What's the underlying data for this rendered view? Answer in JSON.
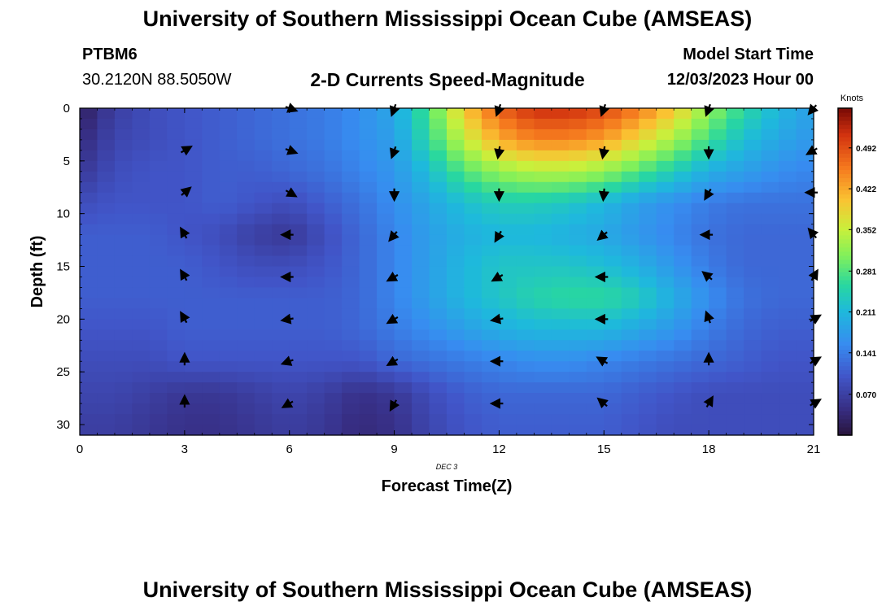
{
  "title": "University of Southern Mississippi Ocean Cube (AMSEAS)",
  "footer_title": "University of Southern Mississippi Ocean Cube (AMSEAS)",
  "station": {
    "id": "PTBM6",
    "coords": "30.2120N  88.5050W"
  },
  "plot_title": "2-D Currents Speed-Magnitude",
  "model_start": {
    "label": "Model Start Time",
    "value": "12/03/2023 Hour 00"
  },
  "chart_data": {
    "type": "heatmap",
    "title": "2-D Currents Speed-Magnitude",
    "xlabel": "Forecast Time(Z)",
    "ylabel": "Depth (ft)",
    "date_label": "DEC 3",
    "xlim": [
      0,
      21
    ],
    "ylim": [
      0,
      31
    ],
    "x_ticks": [
      0,
      3,
      6,
      9,
      12,
      15,
      18,
      21
    ],
    "y_ticks": [
      0,
      5,
      10,
      15,
      20,
      25,
      30
    ],
    "colorbar": {
      "label": "Knots",
      "range": [
        0,
        0.56
      ],
      "ticks": [
        "0.070",
        "0.141",
        "0.211",
        "0.281",
        "0.352",
        "0.422",
        "0.492"
      ],
      "tick_values": [
        0.07,
        0.141,
        0.211,
        0.281,
        0.352,
        0.422,
        0.492
      ]
    },
    "grid_x": [
      0,
      1,
      2,
      3,
      4,
      5,
      6,
      7,
      8,
      9,
      10,
      11,
      12,
      13,
      14,
      15,
      16,
      17,
      18,
      19,
      20,
      21
    ],
    "grid_y": [
      0,
      3,
      6,
      9,
      12,
      15,
      18,
      21,
      24,
      27,
      30
    ],
    "speed_knots": [
      [
        0.02,
        0.07,
        0.09,
        0.1,
        0.11,
        0.12,
        0.13,
        0.14,
        0.16,
        0.19,
        0.28,
        0.4,
        0.48,
        0.52,
        0.52,
        0.5,
        0.46,
        0.4,
        0.32,
        0.26,
        0.21,
        0.18
      ],
      [
        0.04,
        0.08,
        0.09,
        0.1,
        0.11,
        0.12,
        0.13,
        0.14,
        0.16,
        0.18,
        0.26,
        0.35,
        0.42,
        0.45,
        0.45,
        0.43,
        0.38,
        0.33,
        0.27,
        0.22,
        0.19,
        0.17
      ],
      [
        0.06,
        0.09,
        0.1,
        0.1,
        0.11,
        0.11,
        0.12,
        0.13,
        0.15,
        0.17,
        0.22,
        0.28,
        0.32,
        0.34,
        0.34,
        0.32,
        0.28,
        0.24,
        0.2,
        0.18,
        0.16,
        0.15
      ],
      [
        0.09,
        0.1,
        0.1,
        0.1,
        0.11,
        0.1,
        0.09,
        0.11,
        0.13,
        0.16,
        0.19,
        0.22,
        0.24,
        0.24,
        0.23,
        0.21,
        0.18,
        0.16,
        0.14,
        0.13,
        0.13,
        0.13
      ],
      [
        0.11,
        0.11,
        0.11,
        0.1,
        0.09,
        0.07,
        0.06,
        0.09,
        0.12,
        0.15,
        0.18,
        0.2,
        0.21,
        0.21,
        0.2,
        0.19,
        0.17,
        0.15,
        0.13,
        0.12,
        0.12,
        0.12
      ],
      [
        0.11,
        0.11,
        0.11,
        0.11,
        0.1,
        0.09,
        0.09,
        0.1,
        0.12,
        0.15,
        0.18,
        0.21,
        0.23,
        0.23,
        0.23,
        0.22,
        0.2,
        0.17,
        0.14,
        0.12,
        0.12,
        0.12
      ],
      [
        0.11,
        0.11,
        0.11,
        0.11,
        0.11,
        0.11,
        0.11,
        0.11,
        0.12,
        0.15,
        0.18,
        0.21,
        0.23,
        0.25,
        0.26,
        0.26,
        0.24,
        0.2,
        0.16,
        0.13,
        0.12,
        0.12
      ],
      [
        0.1,
        0.1,
        0.1,
        0.11,
        0.11,
        0.11,
        0.11,
        0.11,
        0.12,
        0.14,
        0.16,
        0.18,
        0.2,
        0.21,
        0.21,
        0.21,
        0.19,
        0.17,
        0.14,
        0.12,
        0.11,
        0.11
      ],
      [
        0.09,
        0.09,
        0.09,
        0.1,
        0.1,
        0.1,
        0.1,
        0.1,
        0.1,
        0.12,
        0.13,
        0.14,
        0.15,
        0.16,
        0.16,
        0.15,
        0.14,
        0.13,
        0.12,
        0.11,
        0.1,
        0.1
      ],
      [
        0.08,
        0.08,
        0.07,
        0.06,
        0.06,
        0.07,
        0.08,
        0.07,
        0.05,
        0.06,
        0.09,
        0.11,
        0.12,
        0.12,
        0.12,
        0.12,
        0.11,
        0.1,
        0.09,
        0.09,
        0.09,
        0.09
      ],
      [
        0.07,
        0.07,
        0.06,
        0.05,
        0.05,
        0.06,
        0.07,
        0.06,
        0.04,
        0.05,
        0.08,
        0.1,
        0.11,
        0.11,
        0.11,
        0.11,
        0.1,
        0.09,
        0.09,
        0.09,
        0.09,
        0.09
      ]
    ],
    "vectors_hours": [
      0,
      3,
      6,
      9,
      12,
      15,
      18,
      21
    ],
    "vectors_depths": [
      0,
      4,
      8,
      12,
      16,
      20,
      24,
      28
    ],
    "vector_angles_deg": [
      [
        null,
        null,
        20,
        110,
        110,
        110,
        110,
        130
      ],
      [
        null,
        330,
        20,
        110,
        100,
        100,
        90,
        150
      ],
      [
        null,
        320,
        30,
        90,
        90,
        95,
        120,
        180
      ],
      [
        null,
        240,
        180,
        130,
        120,
        140,
        180,
        230
      ],
      [
        null,
        240,
        180,
        150,
        150,
        180,
        220,
        300
      ],
      [
        null,
        240,
        170,
        150,
        170,
        180,
        250,
        330
      ],
      [
        null,
        270,
        160,
        150,
        180,
        210,
        270,
        330
      ],
      [
        null,
        270,
        150,
        120,
        180,
        220,
        300,
        330
      ]
    ]
  }
}
